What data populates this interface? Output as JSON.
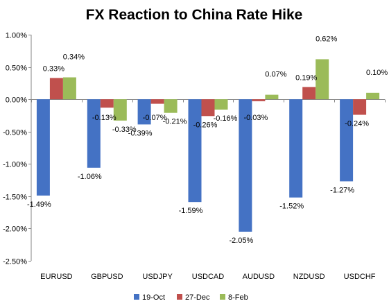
{
  "chart_data": {
    "type": "bar",
    "title": "FX Reaction to China Rate Hike",
    "categories": [
      "EURUSD",
      "GBPUSD",
      "USDJPY",
      "USDCAD",
      "AUDUSD",
      "NZDUSD",
      "USDCHF"
    ],
    "series": [
      {
        "name": "19-Oct",
        "color": "#4472C4",
        "values": [
          -1.49,
          -1.06,
          -0.39,
          -1.59,
          -2.05,
          -1.52,
          -1.27
        ],
        "labels": [
          "-1.49%",
          "-1.06%",
          "-0.39%",
          "-1.59%",
          "-2.05%",
          "-1.52%",
          "-1.27%"
        ]
      },
      {
        "name": "27-Dec",
        "color": "#C0504D",
        "values": [
          0.33,
          -0.13,
          -0.07,
          -0.26,
          -0.03,
          0.19,
          -0.24
        ],
        "labels": [
          "0.33%",
          "-0.13%",
          "-0.07%",
          "-0.26%",
          "-0.03%",
          "0.19%",
          "-0.24%"
        ]
      },
      {
        "name": "8-Feb",
        "color": "#9BBB59",
        "values": [
          0.34,
          -0.33,
          -0.21,
          -0.16,
          0.07,
          0.62,
          0.1
        ],
        "labels": [
          "0.34%",
          "-0.33%",
          "-0.21%",
          "-0.16%",
          "0.07%",
          "0.62%",
          "0.10%"
        ]
      }
    ],
    "ylim": [
      -2.5,
      1.0
    ],
    "yticks": [
      1.0,
      0.5,
      0.0,
      -0.5,
      -1.0,
      -1.5,
      -2.0,
      -2.5
    ],
    "ytick_labels": [
      "1.00%",
      "0.50%",
      "0.00%",
      "-0.50%",
      "-1.00%",
      "-1.50%",
      "-2.00%",
      "-2.50%"
    ],
    "grid": false,
    "legend_position": "bottom"
  }
}
